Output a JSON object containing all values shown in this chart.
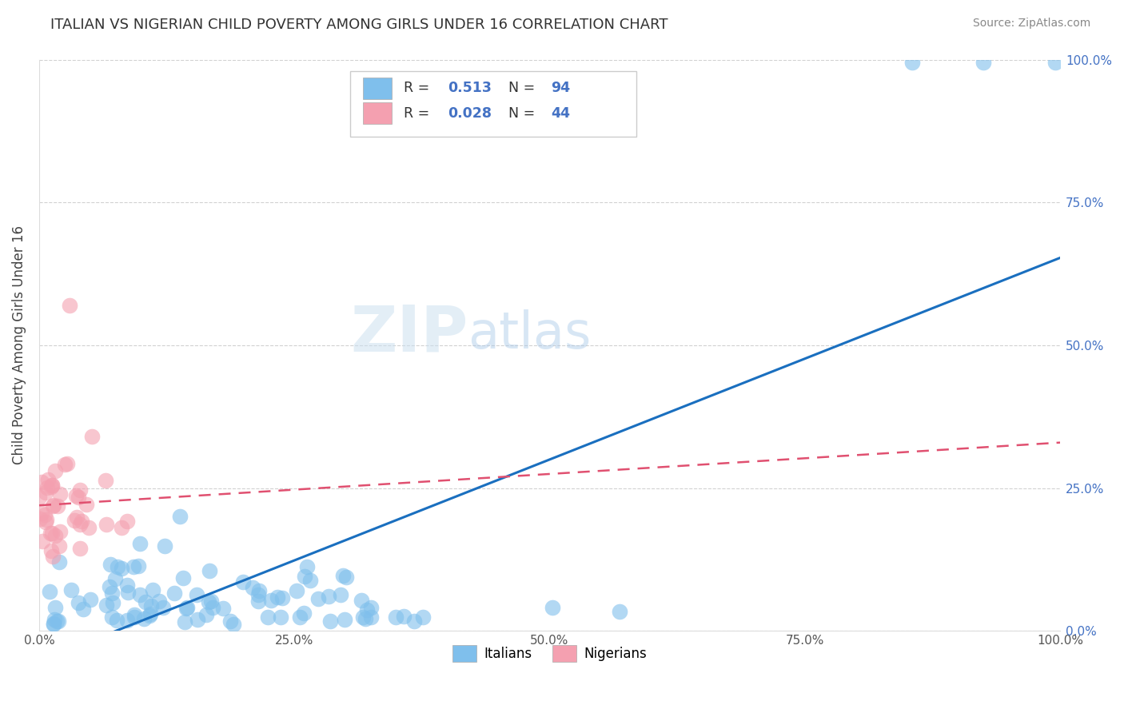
{
  "title": "ITALIAN VS NIGERIAN CHILD POVERTY AMONG GIRLS UNDER 16 CORRELATION CHART",
  "source": "Source: ZipAtlas.com",
  "ylabel": "Child Poverty Among Girls Under 16",
  "italian_R": 0.513,
  "italian_N": 94,
  "nigerian_R": 0.028,
  "nigerian_N": 44,
  "italian_color": "#7fbfec",
  "nigerian_color": "#f4a0b0",
  "italian_line_color": "#1a6fbf",
  "nigerian_line_color": "#e05070",
  "background_color": "#ffffff",
  "watermark_zip": "ZIP",
  "watermark_atlas": "atlas",
  "grid_color": "#cccccc",
  "right_tick_color": "#4472c4",
  "title_color": "#333333",
  "source_color": "#888888"
}
